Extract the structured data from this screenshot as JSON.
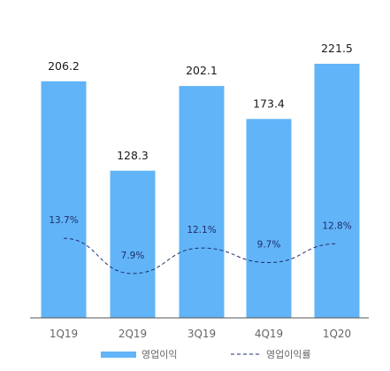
{
  "colors": {
    "bar": "#61b4f7",
    "line": "#1f2d6b",
    "axis": "#555555"
  },
  "chart_data": {
    "type": "bar",
    "categories": [
      "1Q19",
      "2Q19",
      "3Q19",
      "4Q19",
      "1Q20"
    ],
    "series": [
      {
        "name": "영업이익",
        "type": "bar",
        "values": [
          206.2,
          128.3,
          202.1,
          173.4,
          221.5
        ],
        "labels": [
          "206.2",
          "128.3",
          "202.1",
          "173.4",
          "221.5"
        ]
      },
      {
        "name": "영업이익률",
        "type": "line",
        "style": "dashed",
        "values": [
          13.7,
          7.9,
          12.1,
          9.7,
          12.8
        ],
        "labels": [
          "13.7%",
          "7.9%",
          "12.1%",
          "9.7%",
          "12.8%"
        ]
      }
    ],
    "ylim": [
      0,
      240
    ],
    "rate_ylim": [
      0,
      40
    ],
    "legend_position": "bottom",
    "grid": false
  }
}
